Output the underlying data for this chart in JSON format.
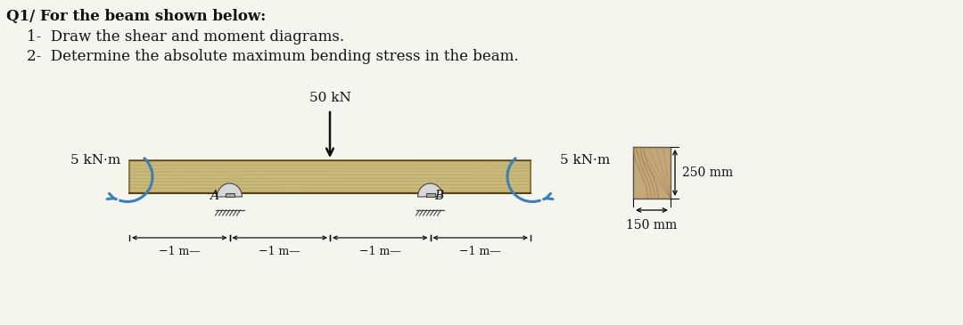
{
  "title_line1": "Q1/ For the beam shown below:",
  "title_line2": "1-  Draw the shear and moment diagrams.",
  "title_line3": "2-  Determine the absolute maximum bending stress in the beam.",
  "load_label": "50 kN",
  "moment_left_label": "5 kN·m",
  "moment_right_label": "5 kN·m",
  "support_A_label": "A",
  "support_B_label": "B",
  "dim_label": "1 m",
  "cross_section_height_label": "250 mm",
  "cross_section_width_label": "150 mm",
  "bg_color": "#f5f5f0",
  "beam_color": "#c8b87a",
  "beam_edge_color": "#7a6530",
  "beam_grain_color": "#a89550",
  "cross_color": "#c4a87a",
  "cross_grain": "#9a7840",
  "text_color": "#111111",
  "moment_arrow_color": "#3a80b8",
  "load_arrow_color": "#111111",
  "dim_color": "#111111",
  "support_face": "#c8c8c8",
  "support_edge": "#444444"
}
